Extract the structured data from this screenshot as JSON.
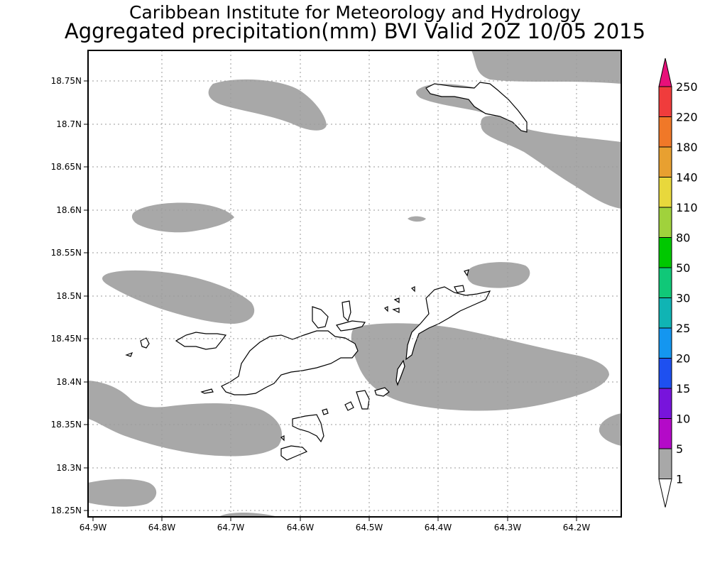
{
  "titles": {
    "line1": "Caribbean Institute for Meteorology and Hydrology",
    "line2": "Aggregated precipitation(mm) BVI Valid 20Z 10/05 2015"
  },
  "map": {
    "lat_labels": [
      "18.75N",
      "18.7N",
      "18.65N",
      "18.6N",
      "18.55N",
      "18.5N",
      "18.45N",
      "18.4N",
      "18.35N",
      "18.3N",
      "18.25N"
    ],
    "lon_labels": [
      "64.9W",
      "64.8W",
      "64.7W",
      "64.6W",
      "64.5W",
      "64.4W",
      "64.3W",
      "64.2W"
    ],
    "gridlines": true,
    "rain_color": "#a8a8a8",
    "rain_class_shown": "1-5 mm"
  },
  "colorbar": {
    "labels": [
      "250",
      "220",
      "180",
      "140",
      "110",
      "80",
      "50",
      "30",
      "25",
      "20",
      "15",
      "10",
      "5",
      "1"
    ],
    "colors": [
      "#e8107a",
      "#f03c3c",
      "#f07828",
      "#e8a030",
      "#e8d83c",
      "#a0d23c",
      "#00c800",
      "#10c878",
      "#10b4b4",
      "#1496f0",
      "#1e50f0",
      "#7814dc",
      "#b40ac8",
      "#a8a8a8",
      "#ffffff"
    ]
  }
}
